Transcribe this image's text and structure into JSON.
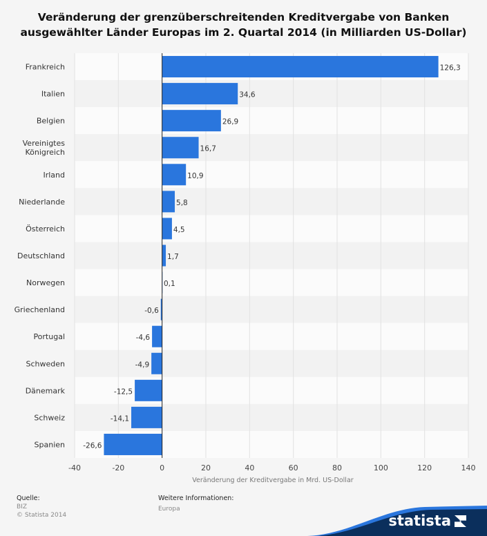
{
  "chart_data": {
    "type": "bar",
    "orientation": "horizontal",
    "title_line1": "Veränderung der grenzüberschreitenden Kreditvergabe von Banken",
    "title_line2": "ausgewählter Länder Europas im 2. Quartal 2014 (in Milliarden US-Dollar)",
    "xlabel": "Veränderung der Kreditvergabe in Mrd. US-Dollar",
    "xlim": [
      -40,
      140
    ],
    "xticks": [
      -40,
      -20,
      0,
      20,
      40,
      60,
      80,
      100,
      120,
      140
    ],
    "categories": [
      "Frankreich",
      "Italien",
      "Belgien",
      "Vereinigtes Königreich",
      "Irland",
      "Niederlande",
      "Österreich",
      "Deutschland",
      "Norwegen",
      "Griechenland",
      "Portugal",
      "Schweden",
      "Dänemark",
      "Schweiz",
      "Spanien"
    ],
    "category_lines": [
      [
        "Frankreich"
      ],
      [
        "Italien"
      ],
      [
        "Belgien"
      ],
      [
        "Vereinigtes",
        "Königreich"
      ],
      [
        "Irland"
      ],
      [
        "Niederlande"
      ],
      [
        "Österreich"
      ],
      [
        "Deutschland"
      ],
      [
        "Norwegen"
      ],
      [
        "Griechenland"
      ],
      [
        "Portugal"
      ],
      [
        "Schweden"
      ],
      [
        "Dänemark"
      ],
      [
        "Schweiz"
      ],
      [
        "Spanien"
      ]
    ],
    "values": [
      126.3,
      34.6,
      26.9,
      16.7,
      10.9,
      5.8,
      4.5,
      1.7,
      0.1,
      -0.6,
      -4.6,
      -4.9,
      -12.5,
      -14.1,
      -26.6
    ],
    "value_labels": [
      "126,3",
      "34,6",
      "26,9",
      "16,7",
      "10,9",
      "5,8",
      "4,5",
      "1,7",
      "0,1",
      "-0,6",
      "-4,6",
      "-4,9",
      "-12,5",
      "-14,1",
      "-26,6"
    ],
    "bar_color": "#2a76dd"
  },
  "footer": {
    "source_heading": "Quelle:",
    "source_lines": [
      "BIZ",
      "© Statista 2014"
    ],
    "info_heading": "Weitere Informationen:",
    "info_value": "Europa"
  },
  "brand": {
    "name": "statista",
    "color": "#0b2f5c"
  }
}
